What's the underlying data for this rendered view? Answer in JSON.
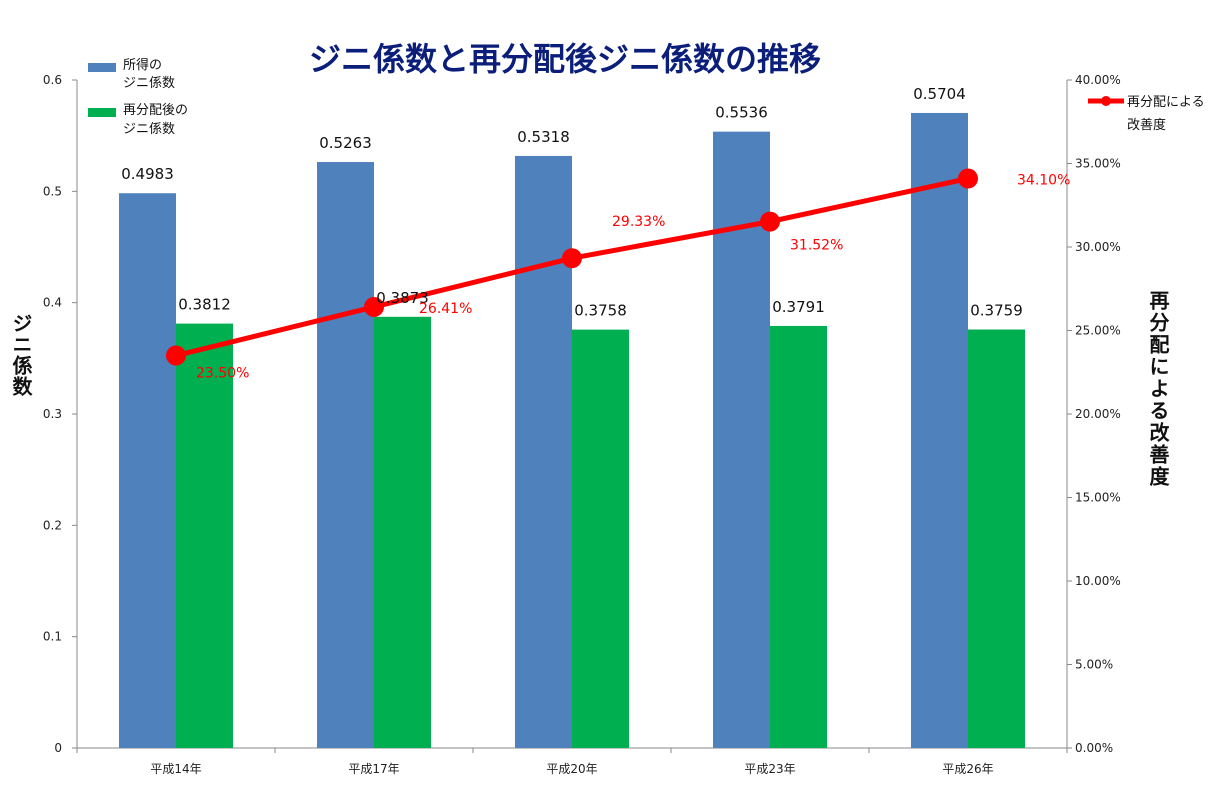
{
  "chart_data": {
    "type": "bar",
    "title": "ジニ係数と再分配後ジニ係数の推移",
    "categories": [
      "平成14年",
      "平成17年",
      "平成20年",
      "平成23年",
      "平成26年"
    ],
    "series": [
      {
        "name": "所得のジニ係数",
        "legend_lines": [
          "所得の",
          "ジニ係数"
        ],
        "type": "bar",
        "axis": "left",
        "color": "#4f81bd",
        "values": [
          0.4983,
          0.5263,
          0.5318,
          0.5536,
          0.5704
        ],
        "labels": [
          "0.4983",
          "0.5263",
          "0.5318",
          "0.5536",
          "0.5704"
        ]
      },
      {
        "name": "再分配後のジニ係数",
        "legend_lines": [
          "再分配後の",
          "ジニ係数"
        ],
        "type": "bar",
        "axis": "left",
        "color": "#00b050",
        "values": [
          0.3812,
          0.3873,
          0.3758,
          0.3791,
          0.3759
        ],
        "labels": [
          "0.3812",
          "0.3873",
          "0.3758",
          "0.3791",
          "0.3759"
        ]
      },
      {
        "name": "再分配による改善度",
        "legend_lines": [
          "再分配による",
          "改善度"
        ],
        "type": "line",
        "axis": "right",
        "color": "#ff0000",
        "values": [
          23.5,
          26.41,
          29.33,
          31.52,
          34.1
        ],
        "labels": [
          "23.50%",
          "26.41%",
          "29.33%",
          "31.52%",
          "34.10%"
        ]
      }
    ],
    "y_left": {
      "label": "ジニ係数",
      "min": 0,
      "max": 0.6,
      "ticks": [
        "0",
        "0.1",
        "0.2",
        "0.3",
        "0.4",
        "0.5",
        "0.6"
      ]
    },
    "y_right": {
      "label": "再分配による改善度",
      "min": 0,
      "max": 40,
      "ticks": [
        "0.00%",
        "5.00%",
        "10.00%",
        "15.00%",
        "20.00%",
        "25.00%",
        "30.00%",
        "35.00%",
        "40.00%"
      ]
    },
    "grid": false,
    "legend_position": "top-left and top-right"
  }
}
